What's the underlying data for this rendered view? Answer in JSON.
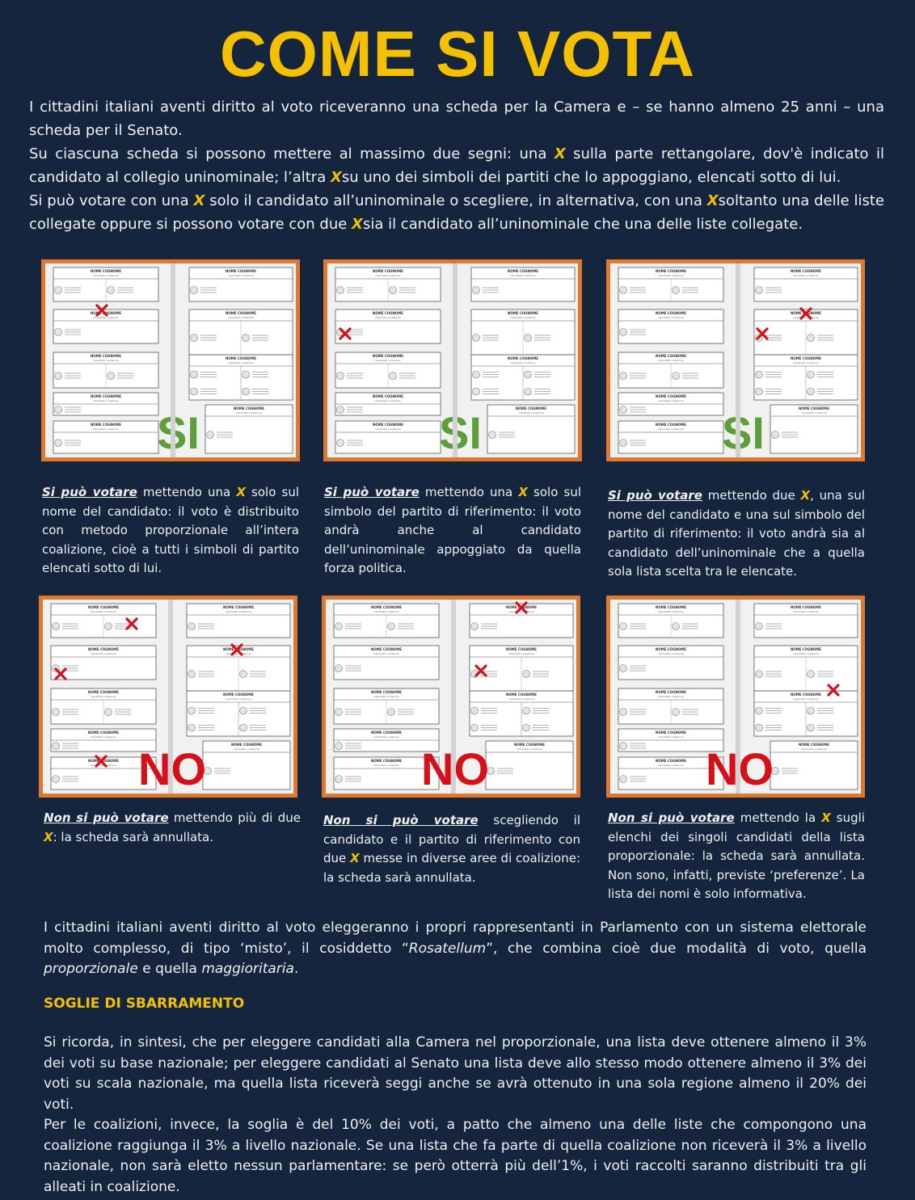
{
  "title": "COME SI VOTA",
  "intro": {
    "p1": "I cittadini italiani aventi diritto al voto riceveranno una scheda per la Camera e – se hanno almeno 25 anni – una scheda per il Senato.",
    "p2a": "Su ciascuna scheda si possono mettere al massimo due segni: una ",
    "p2b": " sulla parte rettangolare, dov'è indicato il candidato al collegio uninominale; l’altra ",
    "p2c": "su uno dei simboli dei partiti che lo appoggiano, elencati sotto di lui.",
    "p3a": "Si può votare con una ",
    "p3b": " solo il candidato all’uninominale o scegliere, in alternativa, con una ",
    "p3c": "soltanto una delle liste collegate oppure si possono votare con due ",
    "p3d": "sia il candidato all’uninominale che una delle liste collegate.",
    "x_mark": "X"
  },
  "ballot": {
    "header": "NOME COGNOME",
    "subheader": "Candidato coalizione"
  },
  "panels": [
    {
      "stamp": "SI"
    },
    {
      "stamp": "SI"
    },
    {
      "stamp": "SI"
    },
    {
      "stamp": "NO"
    },
    {
      "stamp": "NO"
    },
    {
      "stamp": "NO"
    }
  ],
  "captions": {
    "c1": {
      "lead": "Si può votare",
      "a": " mettendo una ",
      "b": " solo sul nome del candidato: il voto è distribuito con metodo proporzionale all’intera coalizione, cioè a tutti i simboli di partito elencati sotto di lui."
    },
    "c2": {
      "lead": "Si può votare",
      "a": " mettendo una ",
      "b": " solo sul simbolo del partito di riferimento: il voto andrà anche al candidato dell’uninominale appoggiato da quella forza politica."
    },
    "c3": {
      "lead": "Si può votare",
      "a": " mettendo due ",
      "b": ", una sul nome del candidato e una sul simbolo del partito di riferimento: il voto andrà sia al candidato dell’uninominale che a quella sola lista scelta tra le elencate."
    },
    "c4": {
      "lead": "Non si può votare",
      "a": " mettendo più di due ",
      "b": ": la scheda sarà annullata."
    },
    "c5": {
      "lead": "Non si può votare",
      "a": " scegliendo il candidato e il partito di riferimento con due ",
      "b": " messe in diverse aree di coalizione: la scheda sarà annullata."
    },
    "c6": {
      "lead": "Non si può votare",
      "a": " mettendo la ",
      "b": " sugli elenchi dei singoli candidati della lista proporzionale: la scheda sarà annullata. Non sono, infatti, previste ‘preferenze’. La lista dei nomi è solo informativa."
    }
  },
  "bottom": {
    "p1a": "I cittadini italiani aventi diritto al voto eleggeranno i propri rappresentanti in Parlamento con un sistema elettorale molto complesso, di tipo ‘misto’, il cosiddetto “",
    "p1b": "Rosatellum",
    "p1c": "”, che combina cioè due modalità di voto, quella ",
    "p1d": "proporzionale",
    "p1e": " e quella ",
    "p1f": "maggioritaria",
    "p1g": ".",
    "heading": "SOGLIE DI SBARRAMENTO",
    "p2": "Si ricorda, in sintesi, che per eleggere candidati alla Camera nel proporzionale, una lista deve ottenere almeno il 3% dei voti su base nazionale; per eleggere candidati al Senato una lista deve allo stesso modo ottenere almeno il 3% dei voti su scala nazionale, ma quella lista riceverà seggi anche se avrà ottenuto in una sola regione almeno il 20% dei voti.",
    "p3": "Per le coalizioni, invece, la soglia è del 10% dei voti, a patto che almeno una delle liste che compongono una coalizione raggiunga il 3% a livello nazionale. Se una lista che fa parte di quella coalizione non riceverà il 3% a livello nazionale, non sarà eletto nessun parlamentare: se però otterrà più dell’1%, i voti raccolti saranno distribuiti tra gli alleati in coalizione."
  }
}
